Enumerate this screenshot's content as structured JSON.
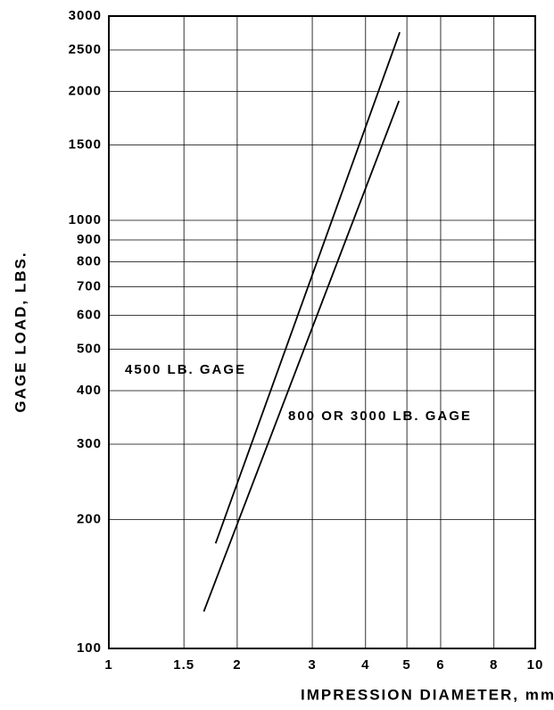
{
  "chart_data": {
    "type": "line",
    "xlabel": "IMPRESSION DIAMETER, mm",
    "ylabel": "GAGE LOAD, LBS.",
    "xscale": "log",
    "yscale": "log",
    "grid": true,
    "xlim": [
      1,
      10
    ],
    "ylim": [
      100,
      3000
    ],
    "xticks": [
      1,
      1.5,
      2,
      3,
      4,
      5,
      6,
      8,
      10
    ],
    "yticks": [
      100,
      200,
      300,
      400,
      500,
      600,
      700,
      800,
      900,
      1000,
      1500,
      2000,
      2500,
      3000
    ],
    "series": [
      {
        "name": "4500 LB. GAGE",
        "color": "#000000",
        "x": [
          1.78,
          4.81
        ],
        "values": [
          176,
          2750
        ]
      },
      {
        "name": "800 OR 3000 LB. GAGE",
        "color": "#000000",
        "x": [
          1.67,
          4.79
        ],
        "values": [
          122,
          1900
        ]
      }
    ]
  }
}
